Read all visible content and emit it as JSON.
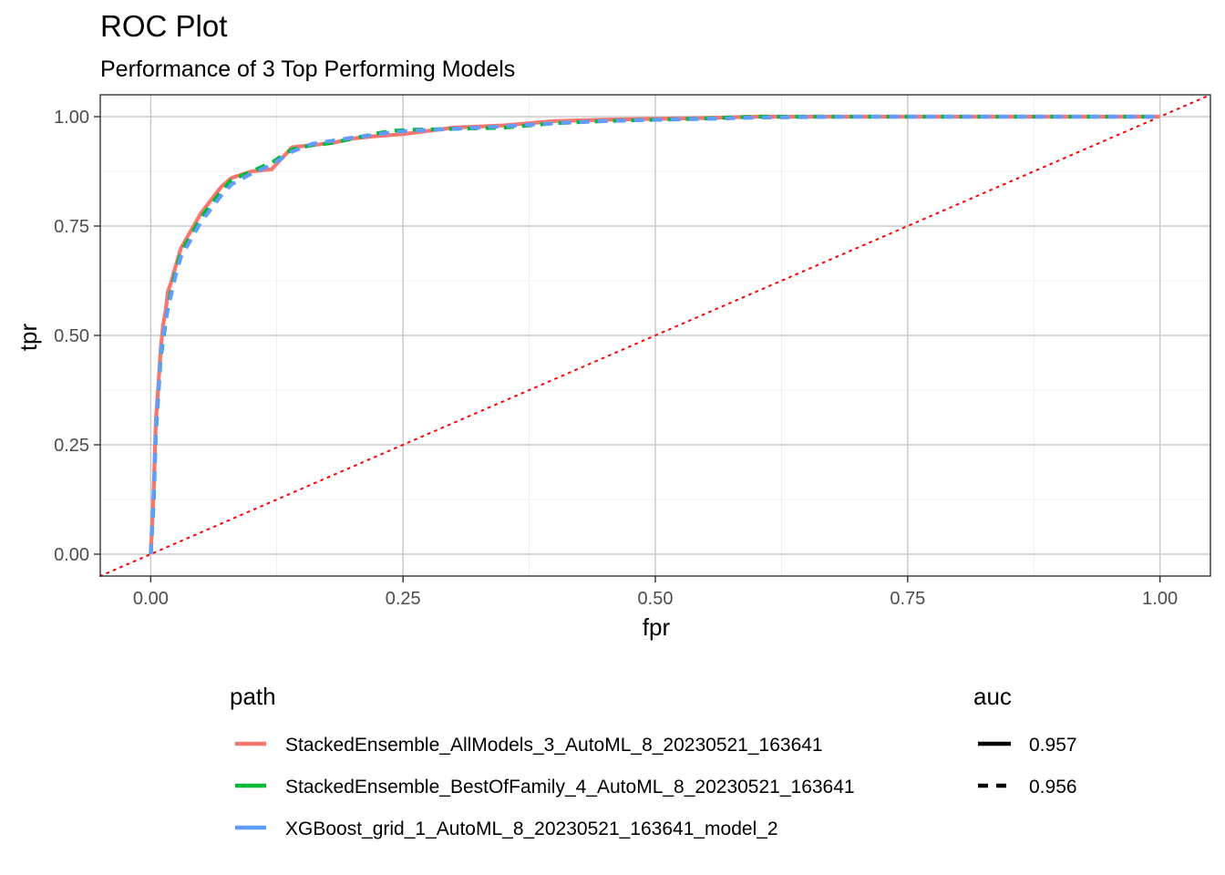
{
  "chart_data": {
    "type": "line",
    "title": "ROC Plot",
    "subtitle": "Performance of 3 Top Performing Models",
    "xlabel": "fpr",
    "ylabel": "tpr",
    "xlim": [
      -0.05,
      1.05
    ],
    "ylim": [
      -0.05,
      1.05
    ],
    "xticks": [
      0,
      0.25,
      0.5,
      0.75,
      1
    ],
    "xtick_labels": [
      "0.00",
      "0.25",
      "0.50",
      "0.75",
      "1.00"
    ],
    "yticks": [
      0,
      0.25,
      0.5,
      0.75,
      1
    ],
    "ytick_labels": [
      "0.00",
      "0.25",
      "0.50",
      "0.75",
      "1.00"
    ],
    "grid": true,
    "legend_position": "bottom",
    "legends": {
      "color": {
        "title": "path",
        "entries": [
          {
            "label": "StackedEnsemble_AllModels_3_AutoML_8_20230521_163641",
            "color": "#F8766D"
          },
          {
            "label": "StackedEnsemble_BestOfFamily_4_AutoML_8_20230521_163641",
            "color": "#00BA38"
          },
          {
            "label": "XGBoost_grid_1_AutoML_8_20230521_163641_model_2",
            "color": "#619CFF"
          }
        ]
      },
      "linetype": {
        "title": "auc",
        "entries": [
          {
            "label": "0.957",
            "dash": "solid"
          },
          {
            "label": "0.956",
            "dash": "dashed"
          }
        ]
      }
    },
    "reference_line": {
      "x": [
        -0.05,
        1.05
      ],
      "y": [
        -0.05,
        1.05
      ],
      "color": "#FF0000",
      "dash": "dotted"
    },
    "series": [
      {
        "name": "StackedEnsemble_AllModels_3_AutoML_8_20230521_163641",
        "color": "#F8766D",
        "dash": "solid",
        "x": [
          0,
          0.003,
          0.005,
          0.008,
          0.01,
          0.012,
          0.015,
          0.017,
          0.02,
          0.025,
          0.03,
          0.04,
          0.05,
          0.06,
          0.07,
          0.08,
          0.1,
          0.12,
          0.14,
          0.16,
          0.18,
          0.2,
          0.22,
          0.25,
          0.3,
          0.35,
          0.4,
          0.45,
          0.5,
          0.55,
          0.6,
          0.7,
          0.8,
          0.9,
          1.0
        ],
        "y": [
          0,
          0.15,
          0.3,
          0.4,
          0.47,
          0.52,
          0.56,
          0.6,
          0.62,
          0.66,
          0.7,
          0.74,
          0.78,
          0.81,
          0.84,
          0.86,
          0.875,
          0.88,
          0.93,
          0.935,
          0.94,
          0.95,
          0.955,
          0.96,
          0.975,
          0.98,
          0.99,
          0.993,
          0.995,
          0.997,
          1.0,
          1.0,
          1.0,
          1.0,
          1.0
        ]
      },
      {
        "name": "StackedEnsemble_BestOfFamily_4_AutoML_8_20230521_163641",
        "color": "#00BA38",
        "dash": "dashed",
        "x": [
          0,
          0.003,
          0.005,
          0.008,
          0.01,
          0.013,
          0.016,
          0.02,
          0.025,
          0.03,
          0.04,
          0.05,
          0.06,
          0.07,
          0.08,
          0.1,
          0.12,
          0.14,
          0.16,
          0.18,
          0.2,
          0.22,
          0.24,
          0.26,
          0.3,
          0.35,
          0.4,
          0.45,
          0.5,
          0.55,
          0.6,
          0.7,
          0.8,
          0.9,
          1.0
        ],
        "y": [
          0,
          0.12,
          0.27,
          0.38,
          0.45,
          0.5,
          0.55,
          0.6,
          0.65,
          0.69,
          0.73,
          0.77,
          0.8,
          0.83,
          0.855,
          0.875,
          0.895,
          0.925,
          0.935,
          0.94,
          0.95,
          0.96,
          0.968,
          0.97,
          0.972,
          0.975,
          0.985,
          0.99,
          0.993,
          0.996,
          1.0,
          1.0,
          1.0,
          1.0,
          1.0
        ]
      },
      {
        "name": "XGBoost_grid_1_AutoML_8_20230521_163641_model_2",
        "color": "#619CFF",
        "dash": "dashed",
        "x": [
          0,
          0.003,
          0.005,
          0.008,
          0.01,
          0.013,
          0.016,
          0.02,
          0.025,
          0.03,
          0.04,
          0.05,
          0.06,
          0.07,
          0.08,
          0.1,
          0.12,
          0.14,
          0.16,
          0.18,
          0.2,
          0.22,
          0.24,
          0.26,
          0.3,
          0.35,
          0.4,
          0.45,
          0.5,
          0.55,
          0.6,
          0.7,
          0.8,
          0.9,
          1.0
        ],
        "y": [
          0,
          0.14,
          0.28,
          0.39,
          0.46,
          0.51,
          0.55,
          0.59,
          0.64,
          0.68,
          0.72,
          0.76,
          0.79,
          0.82,
          0.845,
          0.87,
          0.89,
          0.92,
          0.938,
          0.945,
          0.952,
          0.958,
          0.965,
          0.968,
          0.972,
          0.978,
          0.985,
          0.99,
          0.993,
          0.995,
          0.998,
          1.0,
          1.0,
          1.0,
          1.0
        ]
      }
    ]
  }
}
